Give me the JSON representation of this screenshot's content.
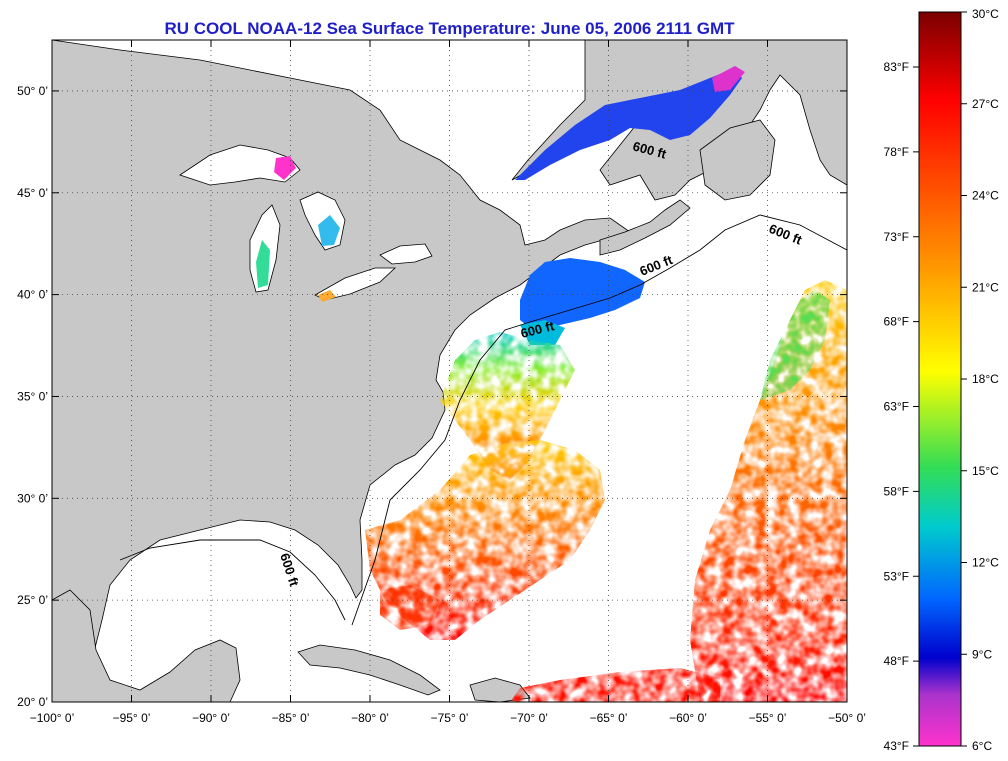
{
  "title": "RU COOL  NOAA-12  Sea Surface Temperature:  June 05, 2006 2111 GMT",
  "axes": {
    "lon_ticks": [
      "−100° 0’",
      "−95° 0’",
      "−90° 0’",
      "−85° 0’",
      "−80° 0’",
      "−75° 0’",
      "−70° 0’",
      "−65° 0’",
      "−60° 0’",
      "−55° 0’",
      "−50° 0’"
    ],
    "lat_ticks": [
      "20° 0’",
      "25° 0’",
      "30° 0’",
      "35° 0’",
      "40° 0’",
      "45° 0’",
      "50° 0’"
    ],
    "lon_range": [
      -100,
      -50
    ],
    "lat_range": [
      20,
      52.5
    ],
    "grid": "dotted"
  },
  "contour_label": "600 ft",
  "colorbar": {
    "celsius": [
      "30°C",
      "27°C",
      "24°C",
      "21°C",
      "18°C",
      "15°C",
      "12°C",
      "9°C",
      "6°C"
    ],
    "fahrenheit": [
      "83°F",
      "78°F",
      "73°F",
      "68°F",
      "63°F",
      "58°F",
      "53°F",
      "48°F",
      "43°F"
    ],
    "colors": [
      "#7a0000",
      "#ff0000",
      "#ff9900",
      "#ffff00",
      "#33dd55",
      "#00cccc",
      "#0066ff",
      "#0000cc",
      "#aa33cc",
      "#ff33cc"
    ]
  },
  "colors": {
    "land": "#c8c8c8",
    "ocean": "#ffffff",
    "title": "#1f1fc8"
  }
}
